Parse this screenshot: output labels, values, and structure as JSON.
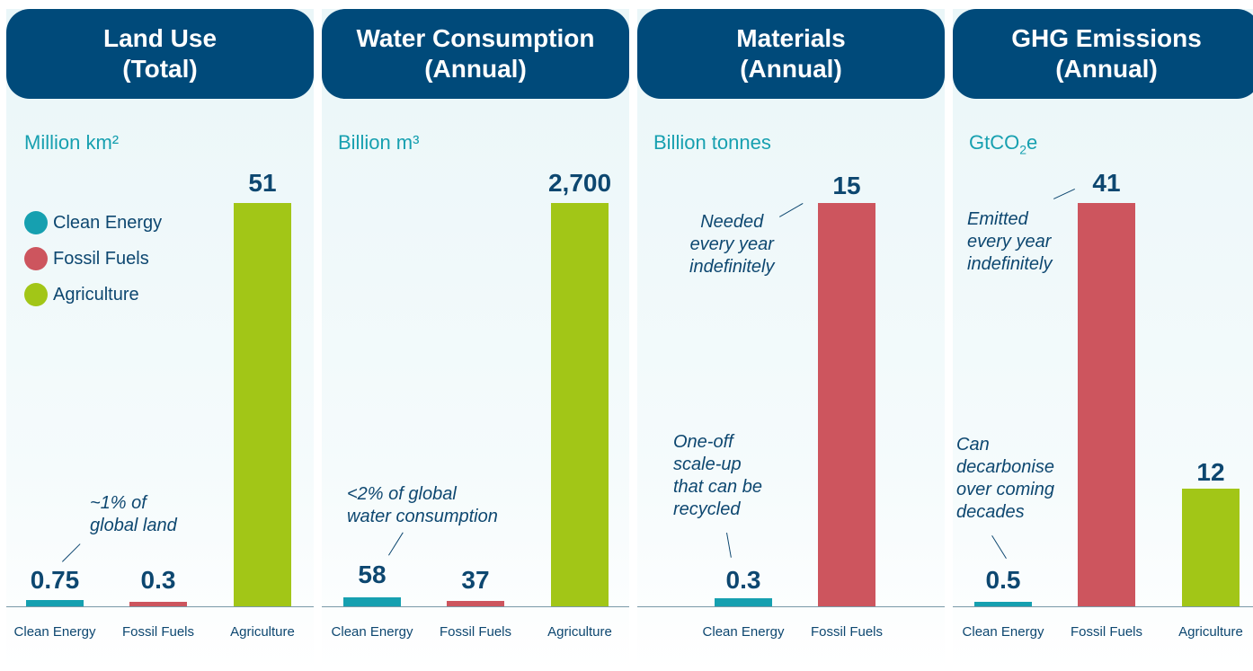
{
  "colors": {
    "clean": "#16a0b0",
    "fossil": "#cd555e",
    "agri": "#a2c617",
    "header": "#004a7a"
  },
  "legend": [
    {
      "label": "Clean Energy",
      "color": "#16a0b0"
    },
    {
      "label": "Fossil Fuels",
      "color": "#cd555e"
    },
    {
      "label": "Agriculture",
      "color": "#a2c617"
    }
  ],
  "chart_data": [
    {
      "type": "bar",
      "title_line1": "Land Use",
      "title_line2": "(Total)",
      "unit": "Million km²",
      "categories": [
        "Clean Energy",
        "Fossil Fuels",
        "Agriculture"
      ],
      "values": [
        0.75,
        0.3,
        51
      ],
      "value_labels": [
        "0.75",
        "0.3",
        "51"
      ],
      "annotations": [
        {
          "text": "~1% of\nglobal land",
          "target": "Clean Energy"
        }
      ]
    },
    {
      "type": "bar",
      "title_line1": "Water Consumption",
      "title_line2": "(Annual)",
      "unit": "Billion m³",
      "categories": [
        "Clean Energy",
        "Fossil Fuels",
        "Agriculture"
      ],
      "values": [
        58,
        37,
        2700
      ],
      "value_labels": [
        "58",
        "37",
        "2,700"
      ],
      "annotations": [
        {
          "text": "<2% of global\nwater consumption",
          "target": "Clean Energy"
        }
      ]
    },
    {
      "type": "bar",
      "title_line1": "Materials",
      "title_line2": "(Annual)",
      "unit": "Billion tonnes",
      "categories": [
        "Clean Energy",
        "Fossil Fuels"
      ],
      "values": [
        0.3,
        15
      ],
      "value_labels": [
        "0.3",
        "15"
      ],
      "annotations": [
        {
          "text": "One-off\nscale-up\nthat can be\nrecycled",
          "target": "Clean Energy"
        },
        {
          "text": "Needed\nevery year\nindefinitely",
          "target": "Fossil Fuels"
        }
      ]
    },
    {
      "type": "bar",
      "title_line1": "GHG Emissions",
      "title_line2": "(Annual)",
      "unit_main": "GtCO",
      "unit_sub": "2",
      "unit_tail": "e",
      "categories": [
        "Clean Energy",
        "Fossil Fuels",
        "Agriculture"
      ],
      "values": [
        0.5,
        41,
        12
      ],
      "value_labels": [
        "0.5",
        "41",
        "12"
      ],
      "annotations": [
        {
          "text": "Can\ndecarbonise\nover coming\ndecades",
          "target": "Clean Energy"
        },
        {
          "text": "Emitted\nevery year\nindefinitely",
          "target": "Fossil Fuels"
        }
      ]
    }
  ]
}
